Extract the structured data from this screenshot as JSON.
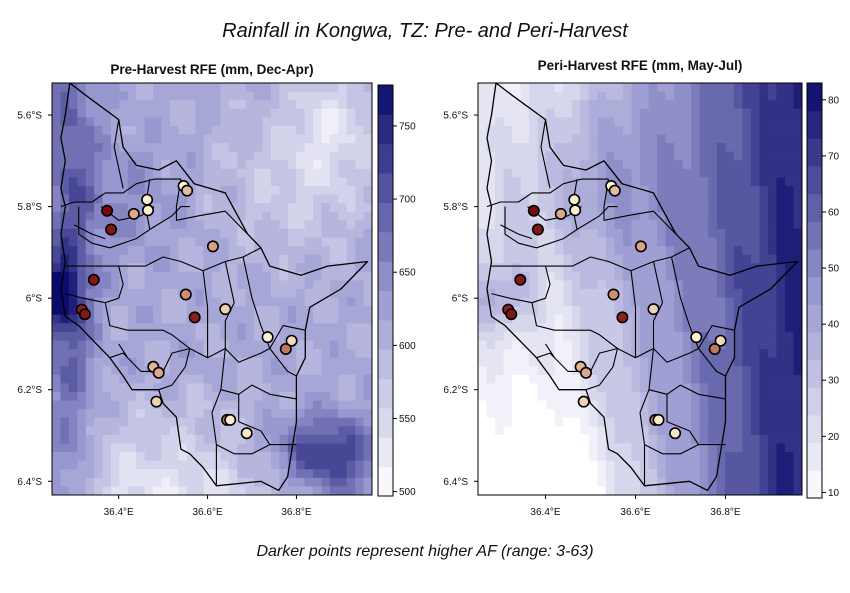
{
  "title": "Rainfall in Kongwa, TZ: Pre- and Peri-Harvest",
  "caption": "Darker points represent higher AF (range: 3-63)",
  "colors": {
    "ramp_low": "#ffffff",
    "ramp_mid": "#9898d0",
    "ramp_high": "#0b0b6b",
    "point_low": "#fff5d6",
    "point_mid": "#d49a7a",
    "point_high": "#7a0a0a"
  },
  "chart_data": [
    {
      "type": "heatmap",
      "title": "Pre-Harvest RFE (mm, Dec-Apr)",
      "legend_range": [
        497,
        778
      ],
      "legend_ticks": [
        "500",
        "550",
        "600",
        "650",
        "700",
        "750"
      ],
      "legend_tick_values": [
        500,
        550,
        600,
        650,
        700,
        750
      ],
      "xlim": [
        36.25,
        36.97
      ],
      "ylim": [
        -6.43,
        -5.53
      ],
      "x_ticks": [
        "36.4°E",
        "36.6°E",
        "36.8°E"
      ],
      "x_tick_values": [
        36.4,
        36.6,
        36.8
      ],
      "y_ticks": [
        "5.6°S",
        "5.8°S",
        "6°S",
        "6.2°S",
        "6.4°S"
      ],
      "y_tick_values": [
        -5.6,
        -5.8,
        -6.0,
        -6.2,
        -6.4
      ],
      "points": [
        {
          "x": 36.546,
          "y": -5.755,
          "af": 3
        },
        {
          "x": 36.554,
          "y": -5.765,
          "af": 22
        },
        {
          "x": 36.464,
          "y": -5.785,
          "af": 5
        },
        {
          "x": 36.466,
          "y": -5.808,
          "af": 6
        },
        {
          "x": 36.434,
          "y": -5.816,
          "af": 28
        },
        {
          "x": 36.374,
          "y": -5.809,
          "af": 63
        },
        {
          "x": 36.383,
          "y": -5.85,
          "af": 60
        },
        {
          "x": 36.612,
          "y": -5.887,
          "af": 30
        },
        {
          "x": 36.344,
          "y": -5.96,
          "af": 60
        },
        {
          "x": 36.551,
          "y": -5.992,
          "af": 35
        },
        {
          "x": 36.317,
          "y": -6.025,
          "af": 58
        },
        {
          "x": 36.324,
          "y": -6.035,
          "af": 60
        },
        {
          "x": 36.64,
          "y": -6.024,
          "af": 15
        },
        {
          "x": 36.571,
          "y": -6.042,
          "af": 58
        },
        {
          "x": 36.735,
          "y": -6.085,
          "af": 4
        },
        {
          "x": 36.789,
          "y": -6.093,
          "af": 12
        },
        {
          "x": 36.776,
          "y": -6.111,
          "af": 40
        },
        {
          "x": 36.478,
          "y": -6.15,
          "af": 24
        },
        {
          "x": 36.49,
          "y": -6.163,
          "af": 28
        },
        {
          "x": 36.485,
          "y": -6.226,
          "af": 14
        },
        {
          "x": 36.644,
          "y": -6.266,
          "af": 38
        },
        {
          "x": 36.651,
          "y": -6.266,
          "af": 6
        },
        {
          "x": 36.688,
          "y": -6.295,
          "af": 8
        }
      ]
    },
    {
      "type": "heatmap",
      "title": "Peri-Harvest RFE (mm, May-Jul)",
      "legend_range": [
        9,
        83
      ],
      "legend_ticks": [
        "10",
        "20",
        "30",
        "40",
        "50",
        "60",
        "70",
        "80"
      ],
      "legend_tick_values": [
        10,
        20,
        30,
        40,
        50,
        60,
        70,
        80
      ],
      "xlim": [
        36.25,
        36.97
      ],
      "ylim": [
        -6.43,
        -5.53
      ],
      "x_ticks": [
        "36.4°E",
        "36.6°E",
        "36.8°E"
      ],
      "x_tick_values": [
        36.4,
        36.6,
        36.8
      ],
      "y_ticks": [
        "5.6°S",
        "5.8°S",
        "6°S",
        "6.2°S",
        "6.4°S"
      ],
      "y_tick_values": [
        -5.6,
        -5.8,
        -6.0,
        -6.2,
        -6.4
      ],
      "points": [
        {
          "x": 36.546,
          "y": -5.755,
          "af": 3
        },
        {
          "x": 36.554,
          "y": -5.765,
          "af": 22
        },
        {
          "x": 36.464,
          "y": -5.785,
          "af": 5
        },
        {
          "x": 36.466,
          "y": -5.808,
          "af": 6
        },
        {
          "x": 36.434,
          "y": -5.816,
          "af": 28
        },
        {
          "x": 36.374,
          "y": -5.809,
          "af": 63
        },
        {
          "x": 36.383,
          "y": -5.85,
          "af": 60
        },
        {
          "x": 36.612,
          "y": -5.887,
          "af": 30
        },
        {
          "x": 36.344,
          "y": -5.96,
          "af": 60
        },
        {
          "x": 36.551,
          "y": -5.992,
          "af": 35
        },
        {
          "x": 36.317,
          "y": -6.025,
          "af": 58
        },
        {
          "x": 36.324,
          "y": -6.035,
          "af": 60
        },
        {
          "x": 36.64,
          "y": -6.024,
          "af": 15
        },
        {
          "x": 36.571,
          "y": -6.042,
          "af": 58
        },
        {
          "x": 36.735,
          "y": -6.085,
          "af": 4
        },
        {
          "x": 36.789,
          "y": -6.093,
          "af": 12
        },
        {
          "x": 36.776,
          "y": -6.111,
          "af": 40
        },
        {
          "x": 36.478,
          "y": -6.15,
          "af": 24
        },
        {
          "x": 36.49,
          "y": -6.163,
          "af": 28
        },
        {
          "x": 36.485,
          "y": -6.226,
          "af": 14
        },
        {
          "x": 36.644,
          "y": -6.266,
          "af": 38
        },
        {
          "x": 36.651,
          "y": -6.266,
          "af": 6
        },
        {
          "x": 36.688,
          "y": -6.295,
          "af": 8
        }
      ]
    }
  ]
}
